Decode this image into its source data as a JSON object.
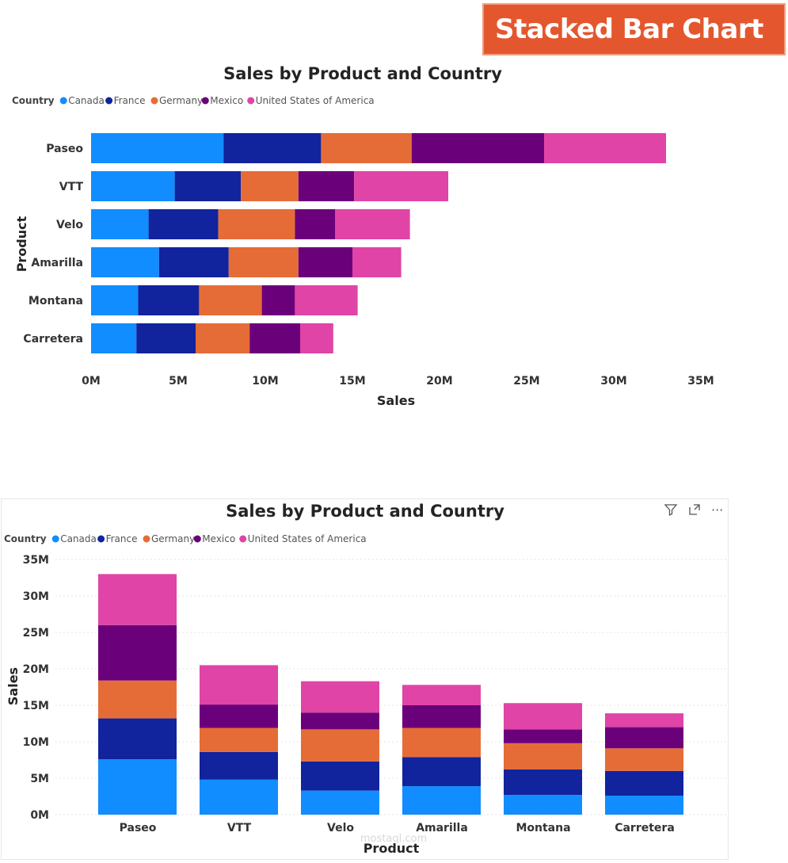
{
  "banner": "Stacked Bar Chart",
  "toolbar": {
    "filter_icon": "filter-icon",
    "focus_icon": "focus-mode-icon",
    "more_icon": "more-options-icon",
    "more_label": "···"
  },
  "watermark": "mostaql.com",
  "chart_data": [
    {
      "type": "bar",
      "orientation": "horizontal",
      "stacked": true,
      "title": "Sales by Product and Country",
      "legend_title": "Country",
      "legend_position": "top-left",
      "xlabel": "Sales",
      "ylabel": "Product",
      "xlim": [
        0,
        35
      ],
      "ticks": [
        "0M",
        "5M",
        "10M",
        "15M",
        "20M",
        "25M",
        "30M",
        "35M"
      ],
      "grid": false,
      "categories": [
        "Paseo",
        "VTT",
        "Velo",
        "Amarilla",
        "Montana",
        "Carretera"
      ],
      "series": [
        {
          "name": "Canada",
          "color": "#118dff",
          "values": [
            7.6,
            4.8,
            3.3,
            3.9,
            2.7,
            2.6
          ]
        },
        {
          "name": "France",
          "color": "#12239e",
          "values": [
            5.6,
            3.8,
            4.0,
            4.0,
            3.5,
            3.4
          ]
        },
        {
          "name": "Germany",
          "color": "#e66c37",
          "values": [
            5.2,
            3.3,
            4.4,
            4.0,
            3.6,
            3.1
          ]
        },
        {
          "name": "Mexico",
          "color": "#6b007b",
          "values": [
            7.6,
            3.2,
            2.3,
            3.1,
            1.9,
            2.9
          ]
        },
        {
          "name": "United States of America",
          "color": "#e044a7",
          "values": [
            7.0,
            5.4,
            4.3,
            2.8,
            3.6,
            1.9
          ]
        }
      ]
    },
    {
      "type": "bar",
      "orientation": "vertical",
      "stacked": true,
      "title": "Sales by Product and Country",
      "legend_title": "Country",
      "legend_position": "top-left",
      "xlabel": "Product",
      "ylabel": "Sales",
      "ylim": [
        0,
        35
      ],
      "ticks": [
        "0M",
        "5M",
        "10M",
        "15M",
        "20M",
        "25M",
        "30M",
        "35M"
      ],
      "grid": true,
      "categories": [
        "Paseo",
        "VTT",
        "Velo",
        "Amarilla",
        "Montana",
        "Carretera"
      ],
      "series": [
        {
          "name": "Canada",
          "color": "#118dff",
          "values": [
            7.6,
            4.8,
            3.3,
            3.9,
            2.7,
            2.6
          ]
        },
        {
          "name": "France",
          "color": "#12239e",
          "values": [
            5.6,
            3.8,
            4.0,
            4.0,
            3.5,
            3.4
          ]
        },
        {
          "name": "Germany",
          "color": "#e66c37",
          "values": [
            5.2,
            3.3,
            4.4,
            4.0,
            3.6,
            3.1
          ]
        },
        {
          "name": "Mexico",
          "color": "#6b007b",
          "values": [
            7.6,
            3.2,
            2.3,
            3.1,
            1.9,
            2.9
          ]
        },
        {
          "name": "United States of America",
          "color": "#e044a7",
          "values": [
            7.0,
            5.4,
            4.3,
            2.8,
            3.6,
            1.9
          ]
        }
      ]
    }
  ]
}
